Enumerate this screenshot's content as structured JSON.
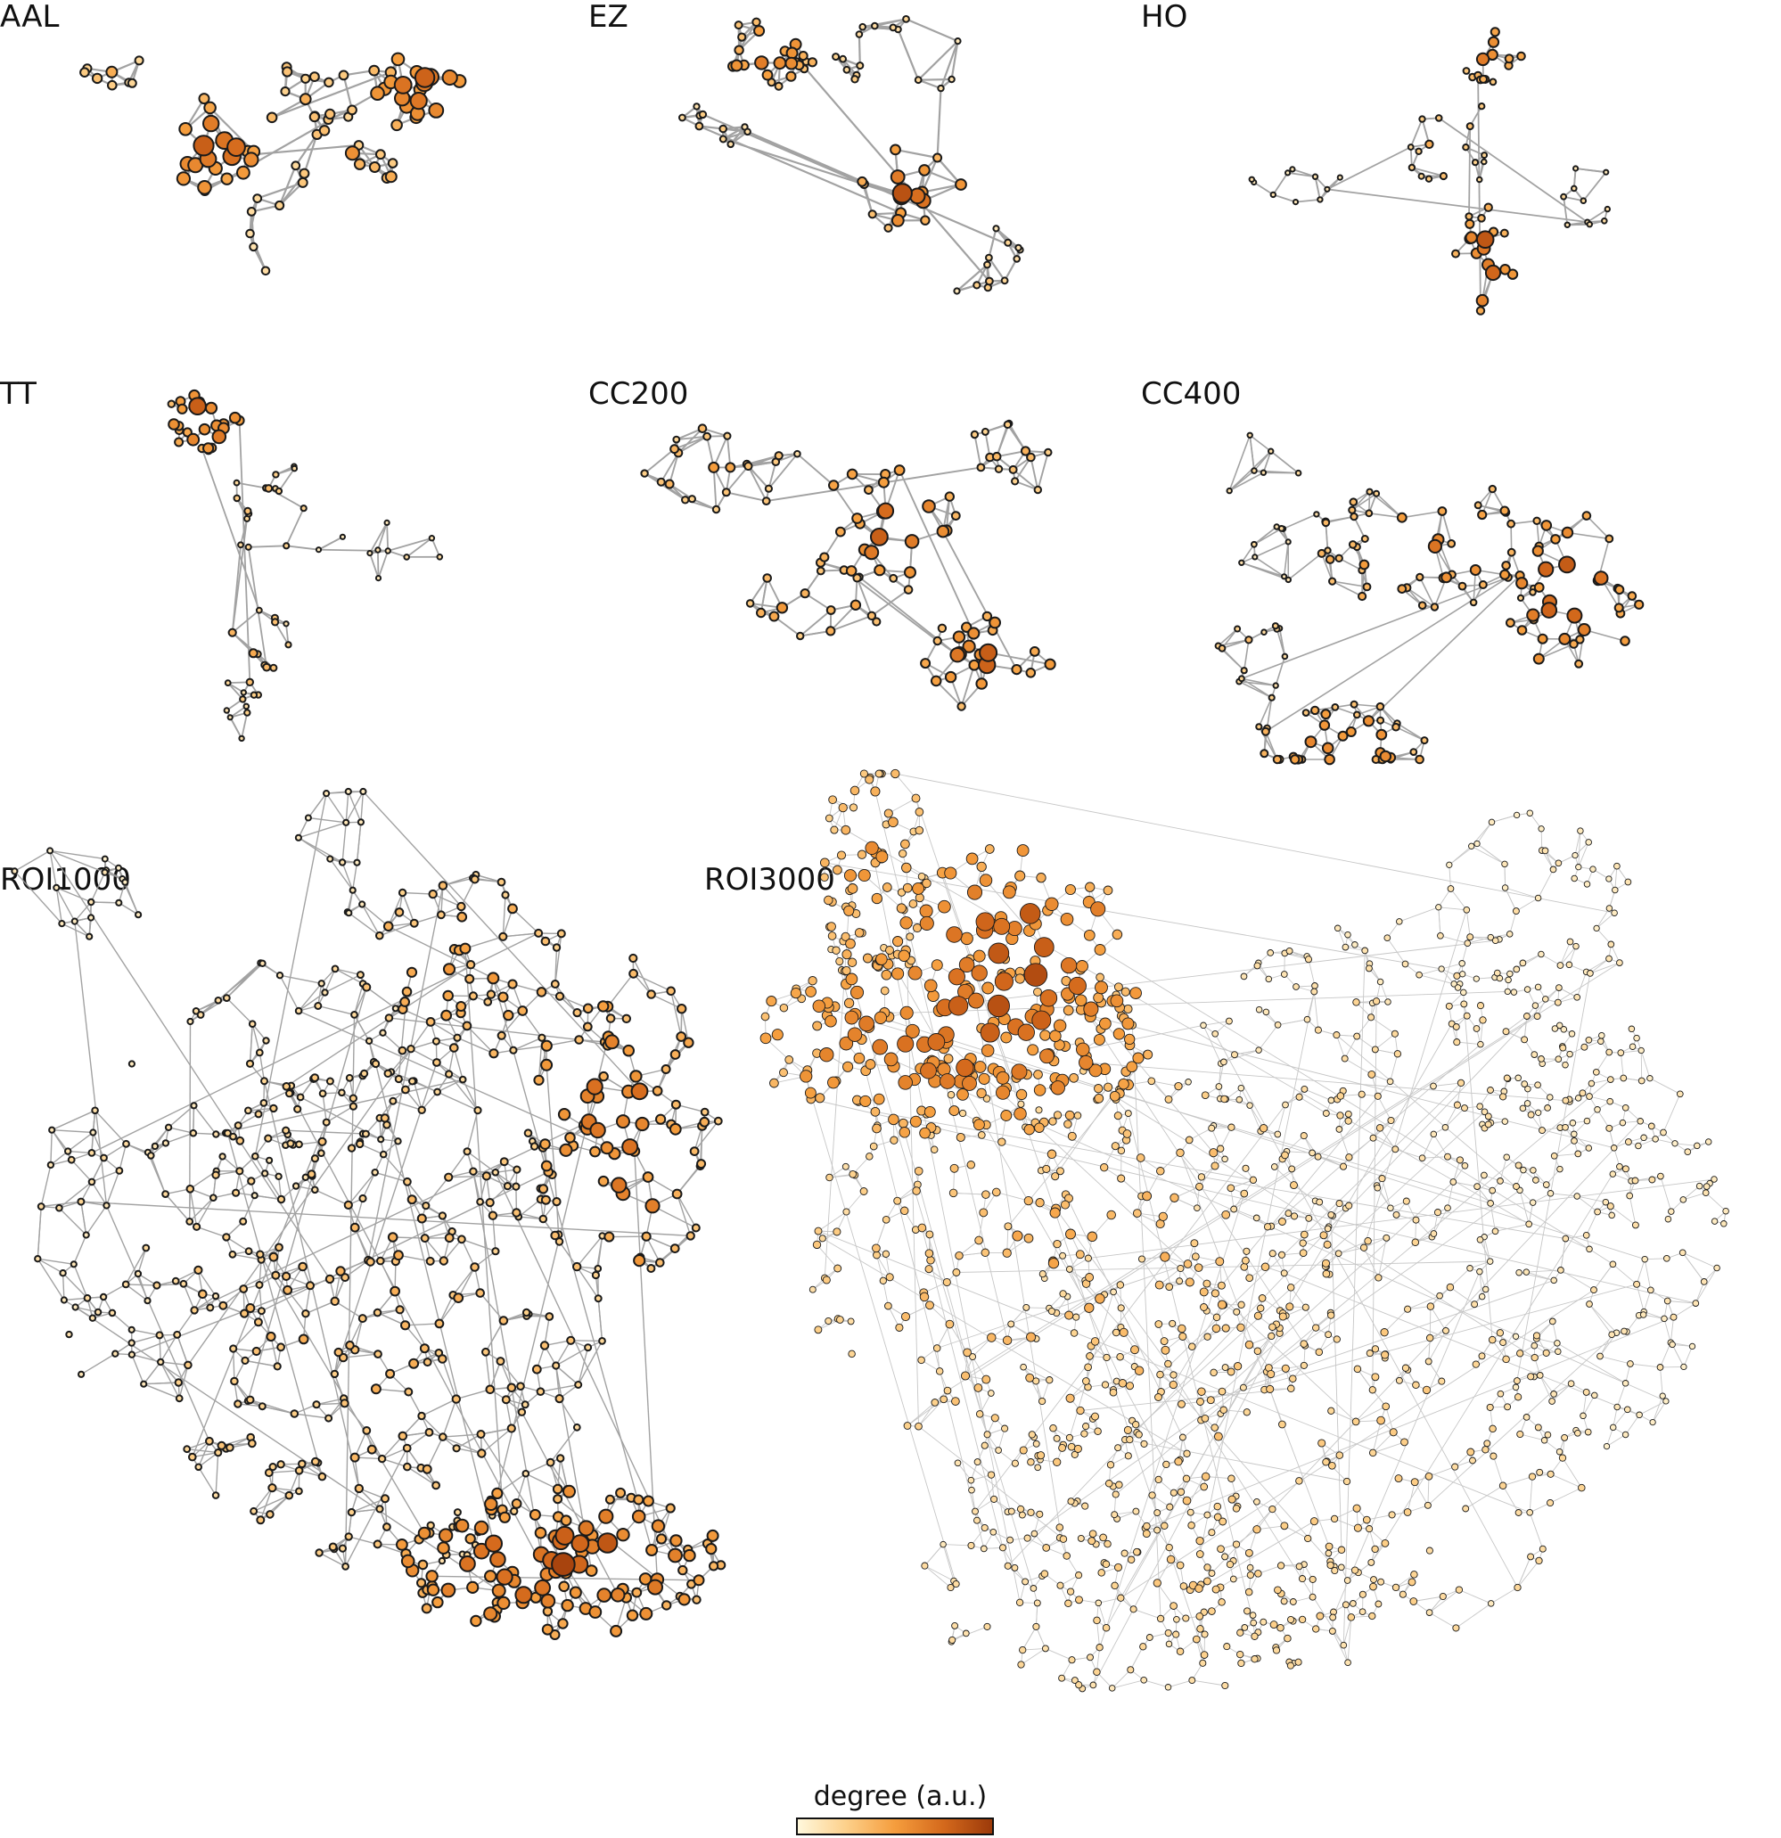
{
  "panels": [
    {
      "id": "aal",
      "label": "AAL"
    },
    {
      "id": "ez",
      "label": "EZ"
    },
    {
      "id": "ho",
      "label": "HO"
    },
    {
      "id": "tt",
      "label": "TT"
    },
    {
      "id": "cc200",
      "label": "CC200"
    },
    {
      "id": "cc400",
      "label": "CC400"
    },
    {
      "id": "roi1000",
      "label": "ROI1000"
    },
    {
      "id": "roi3000",
      "label": "ROI3000"
    }
  ],
  "colorbar": {
    "title": "degree (a.u.)",
    "colors": [
      "#fff8dc",
      "#fdd08a",
      "#f59d3d",
      "#d4691c",
      "#9c3a0a"
    ]
  },
  "style": {
    "edge_color": "#999999",
    "node_stroke": "#1a1a1a"
  }
}
